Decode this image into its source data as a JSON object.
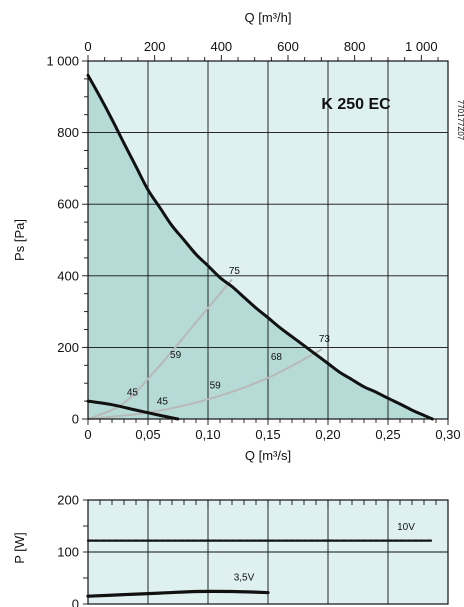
{
  "colors": {
    "panel_bg": "#dff0f0",
    "fill": "#b6dbd7",
    "curve": "#111111",
    "efficiency": "#b8b8b8",
    "grid": "#111111"
  },
  "texts": {
    "model": "K 250 EC",
    "code": "770177Z07"
  },
  "chart_data": [
    {
      "type": "line",
      "title": "K 250 EC",
      "xlabel": "Q [m³/s]",
      "x2label": "Q [m³/h]",
      "ylabel": "Ps [Pa]",
      "xlim": [
        0,
        0.3
      ],
      "ylim": [
        0,
        1000
      ],
      "x2lim": [
        0,
        1080
      ],
      "x_ticks": [
        0,
        0.05,
        0.1,
        0.15,
        0.2,
        0.25,
        0.3
      ],
      "x_tick_labels": [
        "0",
        "0,05",
        "0,10",
        "0,15",
        "0,20",
        "0,25",
        "0,30"
      ],
      "x2_ticks": [
        0,
        200,
        400,
        600,
        800,
        1000
      ],
      "x2_tick_labels": [
        "0",
        "200",
        "400",
        "600",
        "800",
        "1 000"
      ],
      "y_ticks": [
        0,
        200,
        400,
        600,
        800,
        1000
      ],
      "y_tick_labels": [
        "0",
        "200",
        "400",
        "600",
        "800",
        "1 000"
      ],
      "grid": true,
      "series": [
        {
          "name": "10V",
          "x": [
            0,
            0.01,
            0.02,
            0.03,
            0.04,
            0.05,
            0.06,
            0.07,
            0.08,
            0.09,
            0.1,
            0.11,
            0.12,
            0.13,
            0.14,
            0.15,
            0.16,
            0.17,
            0.18,
            0.19,
            0.2,
            0.21,
            0.22,
            0.23,
            0.24,
            0.25,
            0.26,
            0.27,
            0.28,
            0.287
          ],
          "y": [
            960,
            900,
            837,
            770,
            705,
            640,
            590,
            540,
            500,
            460,
            428,
            395,
            370,
            340,
            310,
            283,
            255,
            230,
            205,
            180,
            155,
            130,
            110,
            90,
            75,
            58,
            42,
            25,
            10,
            0
          ]
        },
        {
          "name": "3,5V",
          "x": [
            0,
            0.02,
            0.04,
            0.06,
            0.075
          ],
          "y": [
            50,
            40,
            25,
            10,
            0
          ]
        }
      ],
      "efficiency_curves": [
        {
          "x": [
            0,
            0.03,
            0.06,
            0.09,
            0.12
          ],
          "y": [
            0,
            45,
            150,
            270,
            390
          ]
        },
        {
          "x": [
            0,
            0.05,
            0.1,
            0.15,
            0.195
          ],
          "y": [
            0,
            18,
            55,
            115,
            195
          ]
        }
      ],
      "annotations": [
        {
          "text": "75",
          "x": 0.122,
          "y": 405
        },
        {
          "text": "59",
          "x": 0.073,
          "y": 170
        },
        {
          "text": "45",
          "x": 0.037,
          "y": 65
        },
        {
          "text": "73",
          "x": 0.197,
          "y": 215
        },
        {
          "text": "68",
          "x": 0.157,
          "y": 165
        },
        {
          "text": "59",
          "x": 0.106,
          "y": 85
        },
        {
          "text": "45",
          "x": 0.062,
          "y": 40
        }
      ]
    },
    {
      "type": "line",
      "xlabel": "",
      "ylabel": "P [W]",
      "xlim": [
        0,
        0.3
      ],
      "ylim": [
        0,
        200
      ],
      "y_ticks": [
        0,
        100,
        200
      ],
      "y_tick_labels": [
        "0",
        "100",
        "200"
      ],
      "grid": true,
      "series": [
        {
          "name": "10V",
          "style": "dashed",
          "x": [
            0,
            0.287
          ],
          "y": [
            122,
            122
          ]
        },
        {
          "name": "3,5V",
          "x": [
            0,
            0.03,
            0.06,
            0.09,
            0.12,
            0.15
          ],
          "y": [
            15,
            18,
            21,
            24,
            24,
            22
          ]
        }
      ],
      "annotations": [
        {
          "text": "10V",
          "x": 0.265,
          "y": 142
        },
        {
          "text": "3,5V",
          "x": 0.13,
          "y": 45
        }
      ]
    }
  ]
}
